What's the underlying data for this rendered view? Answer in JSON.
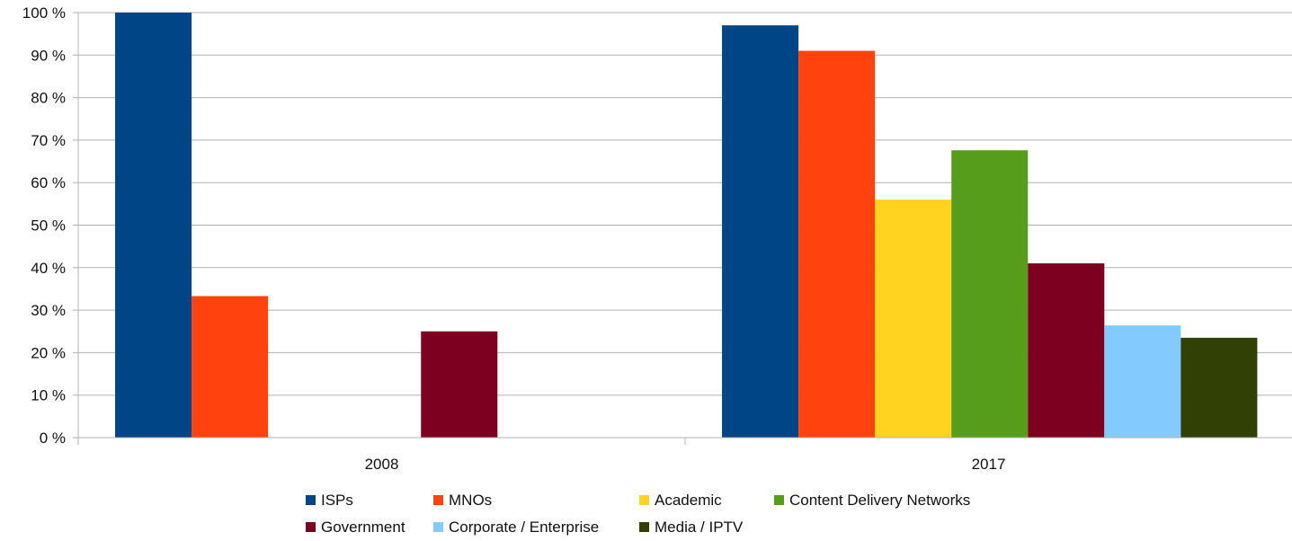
{
  "chart_data": {
    "type": "bar",
    "categories": [
      "2008",
      "2017"
    ],
    "series": [
      {
        "name": "ISPs",
        "color": "#004586",
        "values": [
          100,
          97
        ]
      },
      {
        "name": "MNOs",
        "color": "#ff420e",
        "values": [
          33.3,
          91
        ]
      },
      {
        "name": "Academic",
        "color": "#ffd320",
        "values": [
          0,
          56
        ]
      },
      {
        "name": "Content Delivery Networks",
        "color": "#579d1c",
        "values": [
          0,
          67.6
        ]
      },
      {
        "name": "Government",
        "color": "#7e0021",
        "values": [
          25,
          41
        ]
      },
      {
        "name": "Corporate / Enterprise",
        "color": "#83caff",
        "values": [
          0,
          26.4
        ]
      },
      {
        "name": "Media / IPTV",
        "color": "#314004",
        "values": [
          0,
          23.5
        ]
      }
    ],
    "yticks": [
      "0 %",
      "10 %",
      "20 %",
      "30 %",
      "40 %",
      "50 %",
      "60 %",
      "70 %",
      "80 %",
      "90 %",
      "100 %"
    ],
    "ylim": [
      0,
      100
    ],
    "grid": true,
    "legend_position": "bottom",
    "title": "",
    "xlabel": "",
    "ylabel": ""
  }
}
